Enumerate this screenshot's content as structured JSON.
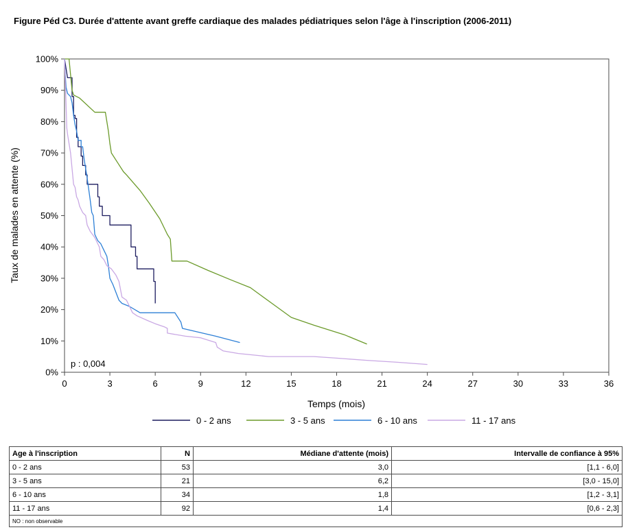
{
  "title": "Figure Péd C3. Durée d'attente avant greffe cardiaque des malades pédiatriques selon l'âge à l'inscription (2006-2011)",
  "chart_data": {
    "type": "line",
    "xlabel": "Temps (mois)",
    "ylabel": "Taux de malades en attente (%)",
    "xlim": [
      0,
      36
    ],
    "ylim": [
      0,
      100
    ],
    "x_ticks": [
      "0",
      "3",
      "6",
      "9",
      "12",
      "15",
      "18",
      "21",
      "24",
      "27",
      "30",
      "33",
      "36"
    ],
    "y_ticks": [
      "0%",
      "10%",
      "20%",
      "30%",
      "40%",
      "50%",
      "60%",
      "70%",
      "80%",
      "90%",
      "100%"
    ],
    "annotation": "p : 0,004",
    "grid": false,
    "legend_position": "bottom",
    "series": [
      {
        "name": "0 - 2 ans",
        "color": "#1b1b5e",
        "points": [
          [
            0,
            100
          ],
          [
            0.1,
            97
          ],
          [
            0.2,
            94
          ],
          [
            0.5,
            94
          ],
          [
            0.5,
            88
          ],
          [
            0.6,
            88
          ],
          [
            0.6,
            82
          ],
          [
            0.7,
            82
          ],
          [
            0.7,
            81
          ],
          [
            0.8,
            81
          ],
          [
            0.8,
            75
          ],
          [
            0.9,
            75
          ],
          [
            0.9,
            72
          ],
          [
            1.1,
            72
          ],
          [
            1.1,
            69
          ],
          [
            1.2,
            69
          ],
          [
            1.2,
            66
          ],
          [
            1.4,
            66
          ],
          [
            1.4,
            63
          ],
          [
            1.5,
            63
          ],
          [
            1.5,
            60
          ],
          [
            2.2,
            60
          ],
          [
            2.2,
            56
          ],
          [
            2.3,
            56
          ],
          [
            2.3,
            53
          ],
          [
            2.5,
            53
          ],
          [
            2.5,
            50
          ],
          [
            3.0,
            50
          ],
          [
            3.0,
            47
          ],
          [
            4.4,
            47
          ],
          [
            4.4,
            40
          ],
          [
            4.7,
            40
          ],
          [
            4.7,
            37
          ],
          [
            4.8,
            37
          ],
          [
            4.8,
            33
          ],
          [
            5.9,
            33
          ],
          [
            5.9,
            29
          ],
          [
            6.0,
            29
          ],
          [
            6.0,
            22
          ]
        ]
      },
      {
        "name": "3 - 5 ans",
        "color": "#6b9a2a",
        "points": [
          [
            0,
            100
          ],
          [
            0.3,
            100
          ],
          [
            0.4,
            95
          ],
          [
            0.5,
            90
          ],
          [
            0.6,
            88.5
          ],
          [
            1.0,
            87.5
          ],
          [
            2.0,
            83
          ],
          [
            2.7,
            83
          ],
          [
            2.8,
            80
          ],
          [
            2.9,
            77
          ],
          [
            3.0,
            73
          ],
          [
            3.1,
            70
          ],
          [
            3.5,
            67
          ],
          [
            3.9,
            64
          ],
          [
            4.1,
            63
          ],
          [
            5.0,
            58
          ],
          [
            5.6,
            54
          ],
          [
            6.3,
            49
          ],
          [
            6.8,
            44
          ],
          [
            7.0,
            42.5
          ],
          [
            7.1,
            35.5
          ],
          [
            8.1,
            35.5
          ],
          [
            9.5,
            32.5
          ],
          [
            11.0,
            29.5
          ],
          [
            12.3,
            27
          ],
          [
            13.0,
            24.5
          ],
          [
            14.0,
            21
          ],
          [
            15.0,
            17.5
          ],
          [
            16.5,
            15
          ],
          [
            18.5,
            12
          ],
          [
            20.0,
            9
          ]
        ]
      },
      {
        "name": "6 - 10 ans",
        "color": "#2c7fd6",
        "points": [
          [
            0,
            100
          ],
          [
            0.05,
            95
          ],
          [
            0.1,
            91
          ],
          [
            0.2,
            89
          ],
          [
            0.4,
            88
          ],
          [
            0.5,
            86
          ],
          [
            0.6,
            82
          ],
          [
            0.7,
            79
          ],
          [
            0.8,
            77
          ],
          [
            0.9,
            74
          ],
          [
            1.1,
            74
          ],
          [
            1.1,
            72
          ],
          [
            1.2,
            72
          ],
          [
            1.3,
            68
          ],
          [
            1.5,
            62
          ],
          [
            1.7,
            55
          ],
          [
            1.8,
            51
          ],
          [
            1.9,
            50
          ],
          [
            2.0,
            44
          ],
          [
            2.2,
            42
          ],
          [
            2.4,
            41
          ],
          [
            2.6,
            39
          ],
          [
            2.8,
            37
          ],
          [
            2.9,
            34
          ],
          [
            3.0,
            30
          ],
          [
            3.2,
            28
          ],
          [
            3.6,
            23
          ],
          [
            3.8,
            22
          ],
          [
            4.3,
            21
          ],
          [
            5.0,
            19
          ],
          [
            7.3,
            19
          ],
          [
            7.7,
            16
          ],
          [
            7.8,
            14
          ],
          [
            10.0,
            11.5
          ],
          [
            11.6,
            9.5
          ]
        ]
      },
      {
        "name": "11 - 17 ans",
        "color": "#c9a8e4",
        "points": [
          [
            0,
            100
          ],
          [
            0.05,
            93
          ],
          [
            0.1,
            86
          ],
          [
            0.15,
            78
          ],
          [
            0.2,
            76
          ],
          [
            0.3,
            73
          ],
          [
            0.4,
            70
          ],
          [
            0.5,
            65
          ],
          [
            0.6,
            60
          ],
          [
            0.7,
            59
          ],
          [
            0.8,
            56
          ],
          [
            0.9,
            55
          ],
          [
            1.0,
            53
          ],
          [
            1.2,
            51
          ],
          [
            1.4,
            50
          ],
          [
            1.5,
            47
          ],
          [
            1.7,
            45
          ],
          [
            2.0,
            43
          ],
          [
            2.2,
            41
          ],
          [
            2.3,
            40
          ],
          [
            2.4,
            37
          ],
          [
            2.6,
            36
          ],
          [
            2.8,
            34
          ],
          [
            3.1,
            33
          ],
          [
            3.4,
            31
          ],
          [
            3.6,
            29
          ],
          [
            3.8,
            24
          ],
          [
            4.1,
            23
          ],
          [
            4.5,
            19
          ],
          [
            4.8,
            18
          ],
          [
            5.5,
            16.5
          ],
          [
            6.0,
            15.5
          ],
          [
            6.6,
            14.5
          ],
          [
            6.8,
            14
          ],
          [
            6.8,
            12.5
          ],
          [
            8.0,
            11.5
          ],
          [
            9.0,
            11
          ],
          [
            10.0,
            9.5
          ],
          [
            10.1,
            8
          ],
          [
            10.5,
            6.8
          ],
          [
            11.5,
            6
          ],
          [
            13.5,
            5
          ],
          [
            16.5,
            5
          ],
          [
            18.0,
            4.5
          ],
          [
            20.0,
            3.8
          ],
          [
            22.0,
            3.2
          ],
          [
            24.0,
            2.5
          ]
        ]
      }
    ]
  },
  "table": {
    "headers": [
      "Age à l'inscription",
      "N",
      "Médiane d'attente (mois)",
      "Intervalle de confiance à 95%"
    ],
    "rows": [
      [
        "0 - 2 ans",
        "53",
        "3,0",
        "[1,1 - 6,0]"
      ],
      [
        "3 - 5 ans",
        "21",
        "6,2",
        "[3,0 - 15,0]"
      ],
      [
        "6 - 10 ans",
        "34",
        "1,8",
        "[1,2 - 3,1]"
      ],
      [
        "11 - 17 ans",
        "92",
        "1,4",
        "[0,6 - 2,3]"
      ]
    ],
    "note": "NO : non observable"
  }
}
